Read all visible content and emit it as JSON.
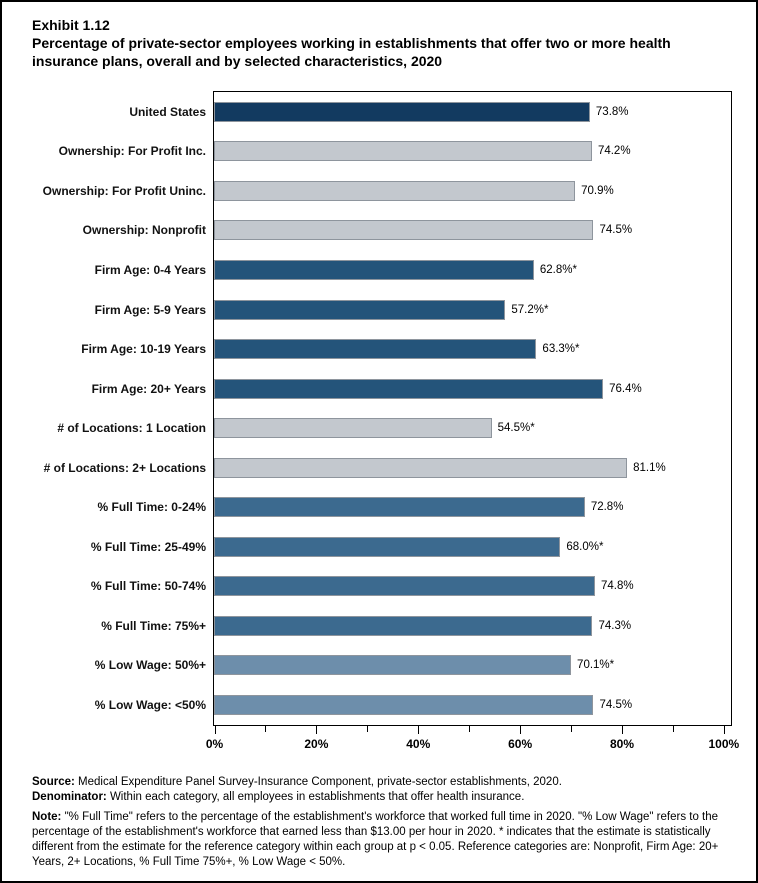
{
  "header": {
    "exhibit_label": "Exhibit 1.12",
    "title": "Percentage of private-sector employees working in establishments that offer two or more health insurance plans, overall and by selected characteristics, 2020"
  },
  "chart_data": {
    "type": "bar",
    "orientation": "horizontal",
    "title": "Percentage of private-sector employees working in establishments that offer two or more health insurance plans, overall and by selected characteristics, 2020",
    "categories": [
      "United States",
      "Ownership: For Profit Inc.",
      "Ownership: For Profit Uninc.",
      "Ownership: Nonprofit",
      "Firm Age: 0-4 Years",
      "Firm Age: 5-9 Years",
      "Firm Age: 10-19 Years",
      "Firm Age: 20+ Years",
      "# of Locations: 1 Location",
      "# of Locations: 2+ Locations",
      "% Full Time: 0-24%",
      "% Full Time: 25-49%",
      "% Full Time: 50-74%",
      "% Full Time: 75%+",
      "% Low Wage: 50%+",
      "% Low Wage: <50%"
    ],
    "values": [
      73.8,
      74.2,
      70.9,
      74.5,
      62.8,
      57.2,
      63.3,
      76.4,
      54.5,
      81.1,
      72.8,
      68.0,
      74.8,
      74.3,
      70.1,
      74.5
    ],
    "value_labels": [
      "73.8%",
      "74.2%",
      "70.9%",
      "74.5%",
      "62.8%*",
      "57.2%*",
      "63.3%*",
      "76.4%",
      "54.5%*",
      "81.1%",
      "72.8%",
      "68.0%*",
      "74.8%",
      "74.3%",
      "70.1%*",
      "74.5%"
    ],
    "groups": [
      "us",
      "ownership",
      "ownership",
      "ownership",
      "firm_age",
      "firm_age",
      "firm_age",
      "firm_age",
      "locations",
      "locations",
      "full_time",
      "full_time",
      "full_time",
      "full_time",
      "low_wage",
      "low_wage"
    ],
    "group_colors": {
      "us": "#123A60",
      "ownership": "#C3C8CE",
      "firm_age": "#24547A",
      "locations": "#C3C8CE",
      "full_time": "#3C6A8F",
      "low_wage": "#6D8EAB"
    },
    "bar_border_color": "#8E959D",
    "xlabel": "",
    "ylabel": "",
    "xlim": [
      0,
      101.5
    ],
    "x_major_ticks": [
      0,
      20,
      40,
      60,
      80,
      100
    ],
    "x_minor_ticks": [
      10,
      30,
      50,
      70,
      90
    ],
    "x_tick_labels": [
      "0%",
      "20%",
      "40%",
      "60%",
      "80%",
      "100%"
    ],
    "grid": false,
    "legend": false
  },
  "footnotes": {
    "source_label": "Source:",
    "source_text": " Medical Expenditure Panel Survey-Insurance Component, private-sector establishments, 2020.",
    "denominator_label": "Denominator:",
    "denominator_text": " Within each category, all employees in establishments that offer health insurance.",
    "note_label": "Note:",
    "note_text": " \"% Full Time\" refers to the percentage of the establishment's workforce that worked full time in 2020. \"% Low Wage\" refers to the percentage of the establishment's workforce that earned less than $13.00 per hour in 2020. * indicates that the estimate is statistically different from the estimate for the reference category within each group at p < 0.05.  Reference categories are: Nonprofit, Firm Age: 20+ Years, 2+ Locations, % Full Time 75%+, % Low Wage < 50%."
  }
}
